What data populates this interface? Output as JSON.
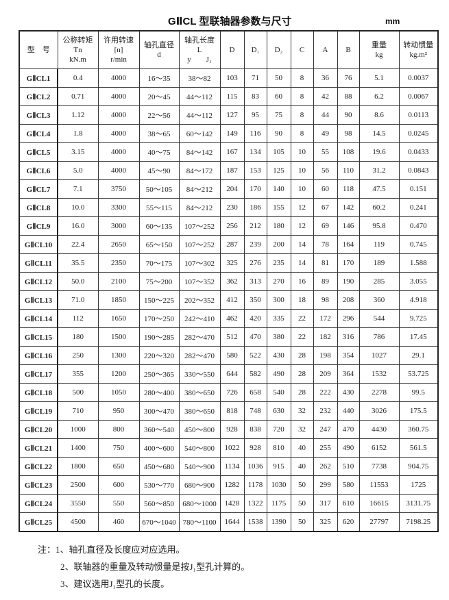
{
  "title": "GⅡCL 型联轴器参数与尺寸",
  "unit": "mm",
  "headers": [
    [
      "型　号"
    ],
    [
      "公称转矩",
      "Tn",
      "kN.m"
    ],
    [
      "许用转速",
      "[n]",
      "r/min"
    ],
    [
      "轴孔直径",
      "d"
    ],
    [
      "轴孔长度",
      "L",
      "y　　J₁"
    ],
    [
      "D"
    ],
    [
      "D₁"
    ],
    [
      "D₂"
    ],
    [
      "C"
    ],
    [
      "A"
    ],
    [
      "B"
    ],
    [
      "重量",
      "kg"
    ],
    [
      "转动惯量",
      "kg.m²"
    ]
  ],
  "rows": [
    [
      "GⅡCL1",
      "0.4",
      "4000",
      "16～35",
      "38～82",
      "103",
      "71",
      "50",
      "8",
      "36",
      "76",
      "5.1",
      "0.0037"
    ],
    [
      "GⅡCL2",
      "0.71",
      "4000",
      "20～45",
      "44～112",
      "115",
      "83",
      "60",
      "8",
      "42",
      "88",
      "6.2",
      "0.0067"
    ],
    [
      "GⅡCL3",
      "1.12",
      "4000",
      "22～56",
      "44～112",
      "127",
      "95",
      "75",
      "8",
      "44",
      "90",
      "8.6",
      "0.0113"
    ],
    [
      "GⅡCL4",
      "1.8",
      "4000",
      "38～65",
      "60～142",
      "149",
      "116",
      "90",
      "8",
      "49",
      "98",
      "14.5",
      "0.0245"
    ],
    [
      "GⅡCL5",
      "3.15",
      "4000",
      "40～75",
      "84～142",
      "167",
      "134",
      "105",
      "10",
      "55",
      "108",
      "19.6",
      "0.0433"
    ],
    [
      "GⅡCL6",
      "5.0",
      "4000",
      "45～90",
      "84～172",
      "187",
      "153",
      "125",
      "10",
      "56",
      "110",
      "31.2",
      "0.0843"
    ],
    [
      "GⅡCL7",
      "7.1",
      "3750",
      "50～105",
      "84～212",
      "204",
      "170",
      "140",
      "10",
      "60",
      "118",
      "47.5",
      "0.151"
    ],
    [
      "GⅡCL8",
      "10.0",
      "3300",
      "55～115",
      "84～212",
      "230",
      "186",
      "155",
      "12",
      "67",
      "142",
      "60.2",
      "0.241"
    ],
    [
      "GⅡCL9",
      "16.0",
      "3000",
      "60～135",
      "107～252",
      "256",
      "212",
      "180",
      "12",
      "69",
      "146",
      "95.8",
      "0.470"
    ],
    [
      "GⅡCL10",
      "22.4",
      "2650",
      "65～150",
      "107～252",
      "287",
      "239",
      "200",
      "14",
      "78",
      "164",
      "119",
      "0.745"
    ],
    [
      "GⅡCL11",
      "35.5",
      "2350",
      "70～175",
      "107～302",
      "325",
      "276",
      "235",
      "14",
      "81",
      "170",
      "189",
      "1.588"
    ],
    [
      "GⅡCL12",
      "50.0",
      "2100",
      "75～200",
      "107～352",
      "362",
      "313",
      "270",
      "16",
      "89",
      "190",
      "285",
      "3.055"
    ],
    [
      "GⅡCL13",
      "71.0",
      "1850",
      "150～225",
      "202～352",
      "412",
      "350",
      "300",
      "18",
      "98",
      "208",
      "360",
      "4.918"
    ],
    [
      "GⅡCL14",
      "112",
      "1650",
      "170～250",
      "242～410",
      "462",
      "420",
      "335",
      "22",
      "172",
      "296",
      "544",
      "9.725"
    ],
    [
      "GⅡCL15",
      "180",
      "1500",
      "190～285",
      "282～470",
      "512",
      "470",
      "380",
      "22",
      "182",
      "316",
      "786",
      "17.45"
    ],
    [
      "GⅡCL16",
      "250",
      "1300",
      "220～320",
      "282～470",
      "580",
      "522",
      "430",
      "28",
      "198",
      "354",
      "1027",
      "29.1"
    ],
    [
      "GⅡCL17",
      "355",
      "1200",
      "250～365",
      "330～550",
      "644",
      "582",
      "490",
      "28",
      "209",
      "364",
      "1532",
      "53.725"
    ],
    [
      "GⅡCL18",
      "500",
      "1050",
      "280～400",
      "380～650",
      "726",
      "658",
      "540",
      "28",
      "222",
      "430",
      "2278",
      "99.5"
    ],
    [
      "GⅡCL19",
      "710",
      "950",
      "300～470",
      "380～650",
      "818",
      "748",
      "630",
      "32",
      "232",
      "440",
      "3026",
      "175.5"
    ],
    [
      "GⅡCL20",
      "1000",
      "800",
      "360～540",
      "450～800",
      "928",
      "838",
      "720",
      "32",
      "247",
      "470",
      "4430",
      "360.75"
    ],
    [
      "GⅡCL21",
      "1400",
      "750",
      "400～600",
      "540～800",
      "1022",
      "928",
      "810",
      "40",
      "255",
      "490",
      "6152",
      "561.5"
    ],
    [
      "GⅡCL22",
      "1800",
      "650",
      "450～680",
      "540～900",
      "1134",
      "1036",
      "915",
      "40",
      "262",
      "510",
      "7738",
      "904.75"
    ],
    [
      "GⅡCL23",
      "2500",
      "600",
      "530～770",
      "680～900",
      "1282",
      "1178",
      "1030",
      "50",
      "299",
      "580",
      "11553",
      "1725"
    ],
    [
      "GⅡCL24",
      "3550",
      "550",
      "560～850",
      "680～1000",
      "1428",
      "1322",
      "1175",
      "50",
      "317",
      "610",
      "16615",
      "3131.75"
    ],
    [
      "GⅡCL25",
      "4500",
      "460",
      "670～1040",
      "780～1100",
      "1644",
      "1538",
      "1390",
      "50",
      "325",
      "620",
      "27797",
      "7198.25"
    ]
  ],
  "notes": [
    "注：1、轴孔直径及长度应对应选用。",
    "2、联轴器的重量及转动惯量是按J₁型孔计算的。",
    "3、建议选用J₁型孔的长度。"
  ]
}
